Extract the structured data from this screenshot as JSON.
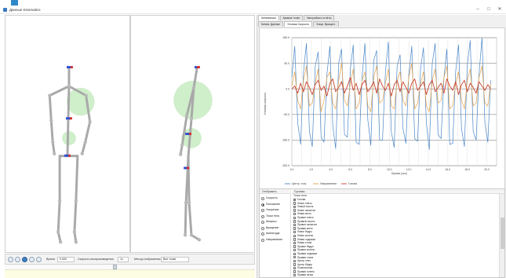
{
  "window": {
    "title": "Данные Kinematics",
    "buttons": {
      "minimize": "–",
      "maximize": "□",
      "close": "✕"
    }
  },
  "playback": {
    "time_label": "Время",
    "time_value": "0.000",
    "speed_label": "Скорость воспроизведения",
    "speed_value": "1x",
    "mode_label": "Метод отображения",
    "mode_value": "Все точки"
  },
  "tabs": {
    "main": [
      "Кинематика",
      "Кривые точек",
      "Настройки и отчёты"
    ],
    "sub": [
      "Кинем. Данные",
      "Угловая Скорость",
      "Ускор. Вращен."
    ]
  },
  "chart_data": {
    "type": "line",
    "xlabel": "Время (сек)",
    "ylabel": "Угловая скорость",
    "x_ticks": [
      "0.0",
      "1.0",
      "2.0",
      "3.0",
      "4.0",
      "5.0",
      "6.0",
      "7.0",
      "8.0",
      "9.0",
      "10.0",
      "11.0",
      "12.0",
      "13.0",
      "14.0",
      "15.0",
      "16.0",
      "17.0",
      "18.0",
      "19.0",
      "20.0",
      "21.0"
    ],
    "y_ticks": [
      "180.0",
      "90.0",
      "0.0",
      "-90.0",
      "-180.0",
      "-300.0"
    ],
    "xlim": [
      0,
      21
    ],
    "ylim": [
      -300,
      200
    ],
    "legend_position": "bottom",
    "grid": true,
    "series": [
      {
        "name": "Центр. точк.",
        "color": "#4a86c8",
        "x": [
          0.0,
          0.3,
          0.6,
          0.9,
          1.2,
          1.5,
          1.8,
          2.1,
          2.4,
          2.7,
          3.0,
          3.3,
          3.6,
          3.9,
          4.2,
          4.5,
          4.8,
          5.1,
          5.4,
          5.7,
          6.0,
          6.3,
          6.6,
          6.9,
          7.2,
          7.5,
          7.8,
          8.1,
          8.4,
          8.7,
          9.0,
          9.3,
          9.6,
          9.9,
          10.2,
          10.5,
          10.8,
          11.1,
          11.4,
          11.7,
          12.0,
          12.3,
          12.6,
          12.9,
          13.2,
          13.5,
          13.8,
          14.1,
          14.4,
          14.7,
          15.0,
          15.3,
          15.6,
          15.9,
          16.2,
          16.5,
          16.8,
          17.1,
          17.4,
          17.7,
          18.0,
          18.3,
          18.6,
          18.9,
          19.2,
          19.5,
          19.8,
          20.1,
          20.4
        ],
        "values": [
          40,
          150,
          -120,
          -200,
          60,
          160,
          -150,
          -210,
          80,
          130,
          -170,
          -190,
          50,
          150,
          -130,
          -220,
          90,
          140,
          -160,
          -170,
          70,
          155,
          -190,
          -200,
          40,
          160,
          -110,
          -205,
          100,
          135,
          -180,
          -180,
          60,
          165,
          -150,
          -215,
          80,
          120,
          -140,
          -195,
          50,
          150,
          -175,
          -185,
          70,
          145,
          -120,
          -225,
          90,
          160,
          -160,
          -175,
          40,
          140,
          -200,
          -195,
          60,
          155,
          -140,
          -210,
          85,
          170,
          -150,
          -180,
          50,
          180,
          -120,
          -190,
          30
        ]
      },
      {
        "name": "Направление",
        "color": "#e8a24a",
        "x": [
          0.0,
          0.3,
          0.6,
          0.9,
          1.2,
          1.5,
          1.8,
          2.1,
          2.4,
          2.7,
          3.0,
          3.3,
          3.6,
          3.9,
          4.2,
          4.5,
          4.8,
          5.1,
          5.4,
          5.7,
          6.0,
          6.3,
          6.6,
          6.9,
          7.2,
          7.5,
          7.8,
          8.1,
          8.4,
          8.7,
          9.0,
          9.3,
          9.6,
          9.9,
          10.2,
          10.5,
          10.8,
          11.1,
          11.4,
          11.7,
          12.0,
          12.3,
          12.6,
          12.9,
          13.2,
          13.5,
          13.8,
          14.1,
          14.4,
          14.7,
          15.0,
          15.3,
          15.6,
          15.9,
          16.2,
          16.5,
          16.8,
          17.1,
          17.4,
          17.7,
          18.0,
          18.3,
          18.6,
          18.9,
          19.2,
          19.5,
          19.8,
          20.1,
          20.4
        ],
        "values": [
          10,
          60,
          -40,
          -70,
          30,
          80,
          -60,
          -50,
          20,
          70,
          -80,
          -40,
          40,
          60,
          -50,
          -70,
          30,
          90,
          -40,
          -60,
          20,
          70,
          -70,
          -50,
          30,
          60,
          -60,
          -80,
          40,
          80,
          -50,
          -40,
          20,
          70,
          -60,
          -70,
          30,
          60,
          -40,
          -60,
          40,
          90,
          -70,
          -50,
          20,
          60,
          -60,
          -80,
          30,
          70,
          -50,
          -40,
          40,
          80,
          -70,
          -60,
          20,
          60,
          -40,
          -70,
          30,
          70,
          -60,
          -50,
          40,
          80,
          -50,
          -60,
          20
        ]
      },
      {
        "name": "Голова",
        "color": "#c8402e",
        "x": [
          0.0,
          0.3,
          0.6,
          0.9,
          1.2,
          1.5,
          1.8,
          2.1,
          2.4,
          2.7,
          3.0,
          3.3,
          3.6,
          3.9,
          4.2,
          4.5,
          4.8,
          5.1,
          5.4,
          5.7,
          6.0,
          6.3,
          6.6,
          6.9,
          7.2,
          7.5,
          7.8,
          8.1,
          8.4,
          8.7,
          9.0,
          9.3,
          9.6,
          9.9,
          10.2,
          10.5,
          10.8,
          11.1,
          11.4,
          11.7,
          12.0,
          12.3,
          12.6,
          12.9,
          13.2,
          13.5,
          13.8,
          14.1,
          14.4,
          14.7,
          15.0,
          15.3,
          15.6,
          15.9,
          16.2,
          16.5,
          16.8,
          17.1,
          17.4,
          17.7,
          18.0,
          18.3,
          18.6,
          18.9,
          19.2,
          19.5,
          19.8,
          20.1,
          20.4
        ],
        "values": [
          0,
          10,
          -15,
          20,
          -10,
          25,
          5,
          -20,
          15,
          30,
          -5,
          10,
          -25,
          20,
          35,
          -10,
          5,
          25,
          -15,
          10,
          40,
          -5,
          20,
          -20,
          15,
          30,
          -10,
          5,
          25,
          -15,
          35,
          10,
          -5,
          20,
          -25,
          15,
          30,
          -10,
          25,
          5,
          -15,
          20,
          35,
          -5,
          10,
          25,
          -20,
          15,
          30,
          -10,
          5,
          20,
          -15,
          35,
          10,
          -5,
          25,
          -20,
          15,
          30,
          -10,
          20,
          5,
          -15,
          25,
          10,
          -5,
          15,
          0
        ]
      }
    ]
  },
  "options": {
    "header": "Отобразить",
    "items": [
      {
        "label": "Скорость",
        "selected": false
      },
      {
        "label": "Положение",
        "selected": true
      },
      {
        "label": "Ускорение",
        "selected": false
      },
      {
        "label": "Точки тела",
        "selected": false
      },
      {
        "label": "Импульс",
        "selected": false
      },
      {
        "label": "Вращение",
        "selected": false
      },
      {
        "label": "Амплитуда",
        "selected": false
      },
      {
        "label": "Направление",
        "selected": false
      }
    ]
  },
  "joints": {
    "header": "Суставы",
    "list_header": "Точки тела",
    "items": [
      {
        "label": "Голова",
        "checked": true
      },
      {
        "label": "Левое плечо",
        "checked": false
      },
      {
        "label": "Левый локоть",
        "checked": false
      },
      {
        "label": "Левое запястье",
        "checked": false
      },
      {
        "label": "Левая кисть",
        "checked": false
      },
      {
        "label": "Правое плечо",
        "checked": false
      },
      {
        "label": "Правый локоть",
        "checked": false
      },
      {
        "label": "Правое запястье",
        "checked": false
      },
      {
        "label": "Правая кисть",
        "checked": false
      },
      {
        "label": "Левое бедро",
        "checked": false
      },
      {
        "label": "Левое колено",
        "checked": false
      },
      {
        "label": "Левая лодыжка",
        "checked": false
      },
      {
        "label": "Левая стопа",
        "checked": false
      },
      {
        "label": "Правое бедро",
        "checked": false
      },
      {
        "label": "Правое колено",
        "checked": false
      },
      {
        "label": "Правая лодыжка",
        "checked": false
      },
      {
        "label": "Правая стопа",
        "checked": false
      },
      {
        "label": "Центр плеч",
        "checked": false
      },
      {
        "label": "Центр бёдер",
        "checked": false
      },
      {
        "label": "Позвоночник",
        "checked": false
      },
      {
        "label": "Правая голень",
        "checked": false
      },
      {
        "label": "Правая пятка",
        "checked": false
      }
    ]
  }
}
